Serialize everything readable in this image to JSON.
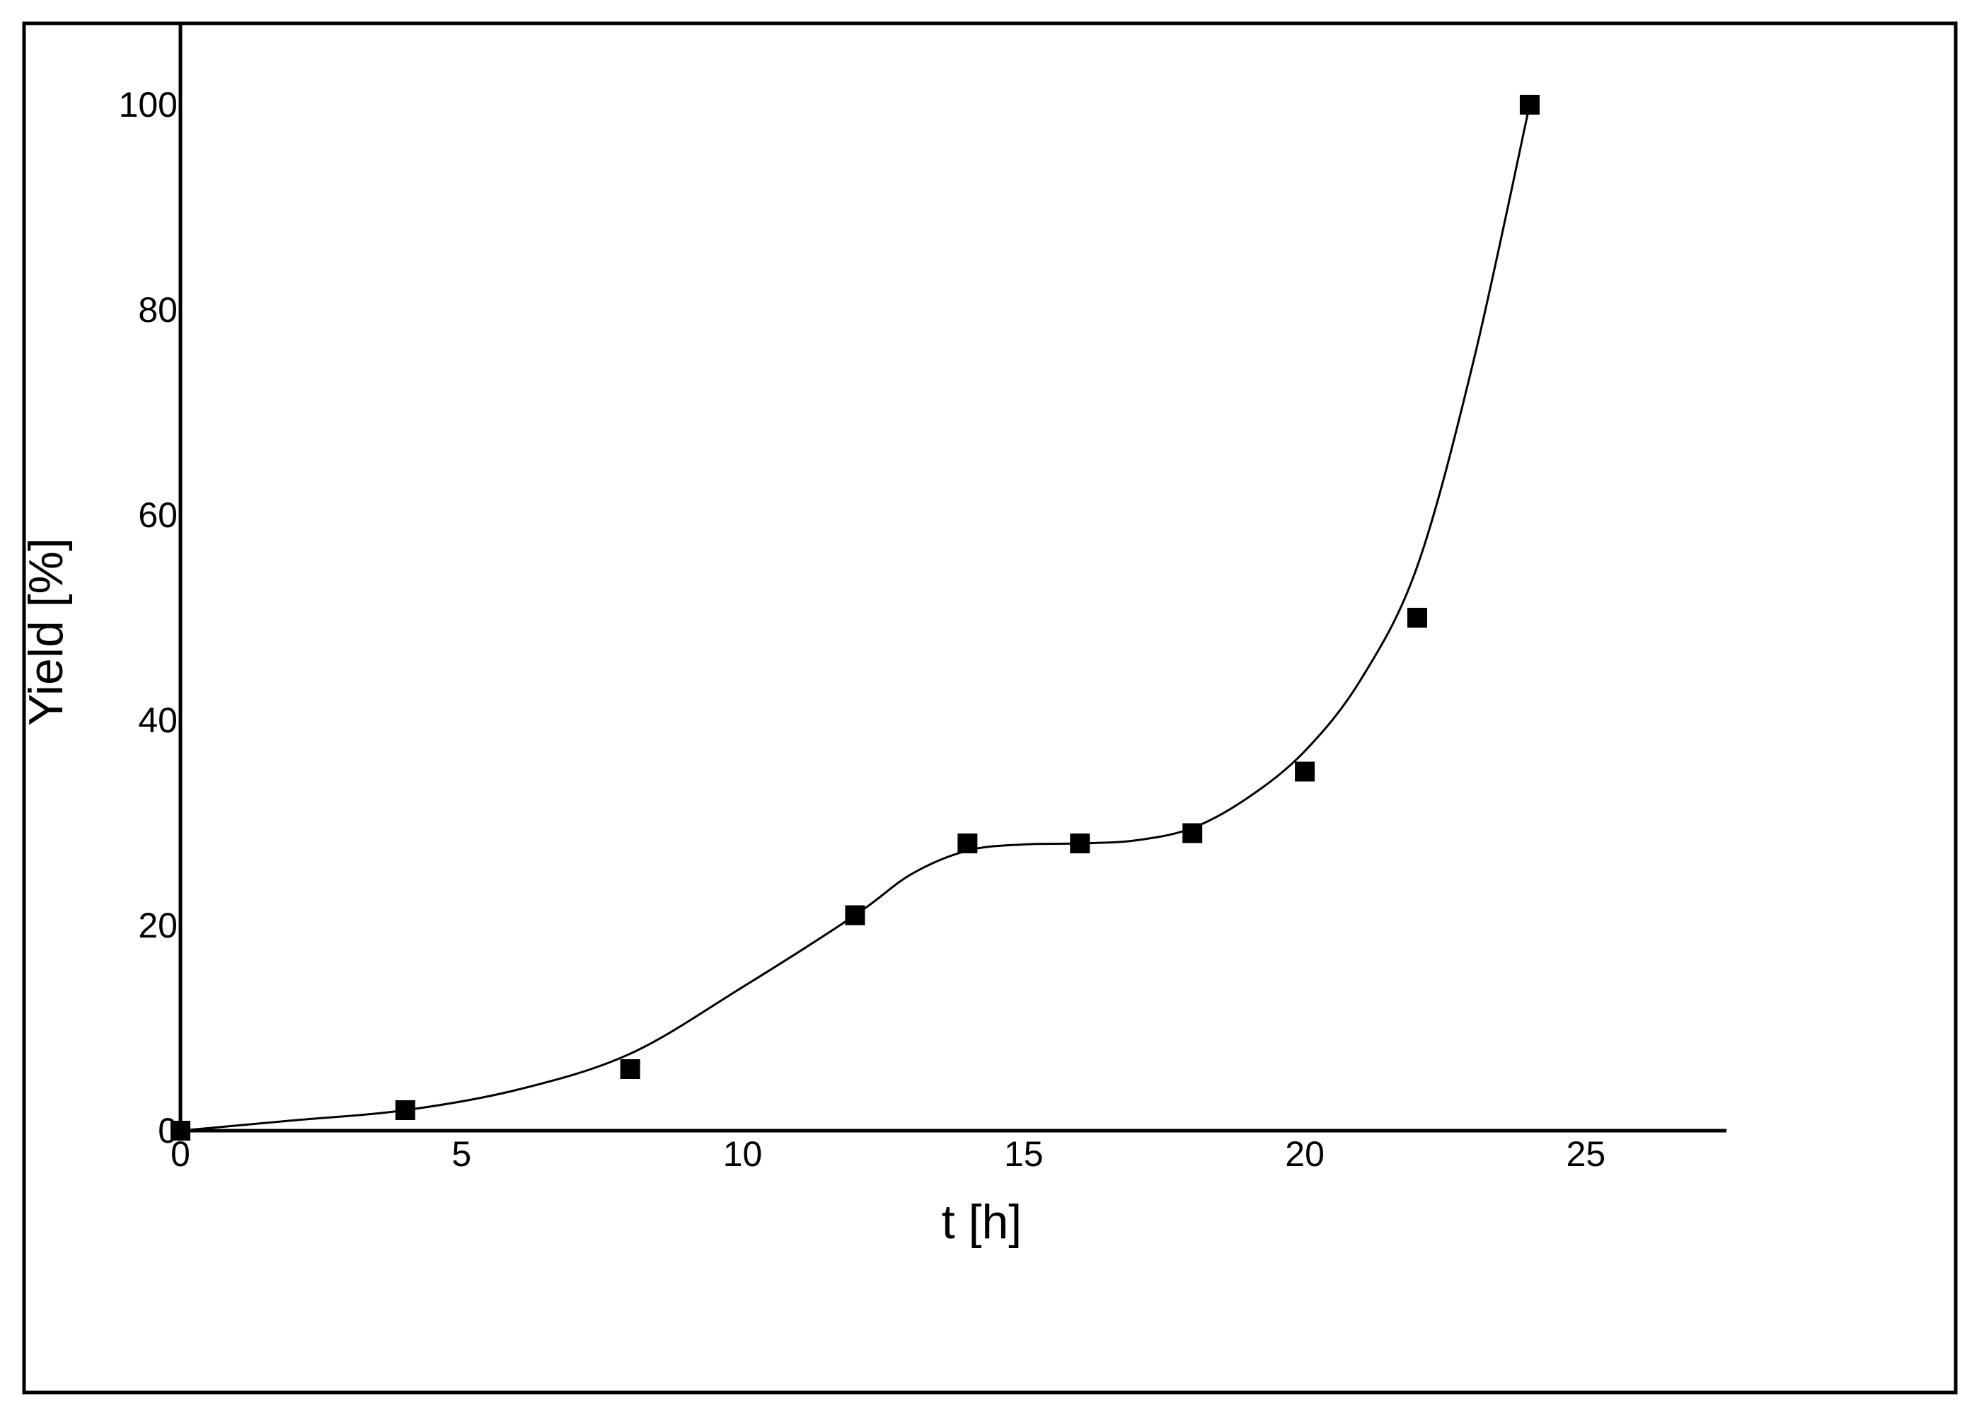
{
  "chart_data": {
    "type": "scatter",
    "title": "",
    "xlabel": "t [h]",
    "ylabel": "Yield [%]",
    "xlim": [
      0,
      27.5
    ],
    "ylim": [
      0,
      100
    ],
    "xticks": [
      0,
      5,
      10,
      15,
      20,
      25
    ],
    "yticks": [
      0,
      20,
      40,
      60,
      80,
      100
    ],
    "grid": false,
    "legend": "none",
    "colors": {
      "marker": "#000000",
      "line": "#000000",
      "frame": "#000000"
    },
    "series": [
      {
        "marker": "square",
        "x": [
          0,
          4,
          8,
          12,
          14,
          16,
          18,
          20,
          22,
          24
        ],
        "y": [
          0,
          2,
          6,
          21,
          28,
          28,
          29,
          35,
          50,
          100
        ]
      }
    ],
    "fit_curve": {
      "style": "smooth",
      "x": [
        0,
        2,
        4,
        6,
        8,
        10,
        12,
        13,
        14,
        15,
        16,
        17,
        18,
        19,
        20,
        21,
        22,
        23,
        24
      ],
      "y": [
        0,
        1,
        2,
        4,
        7.5,
        14,
        21,
        25,
        27.3,
        27.9,
        28,
        28.3,
        29.5,
        32.5,
        37,
        44,
        55,
        75,
        100
      ]
    }
  }
}
